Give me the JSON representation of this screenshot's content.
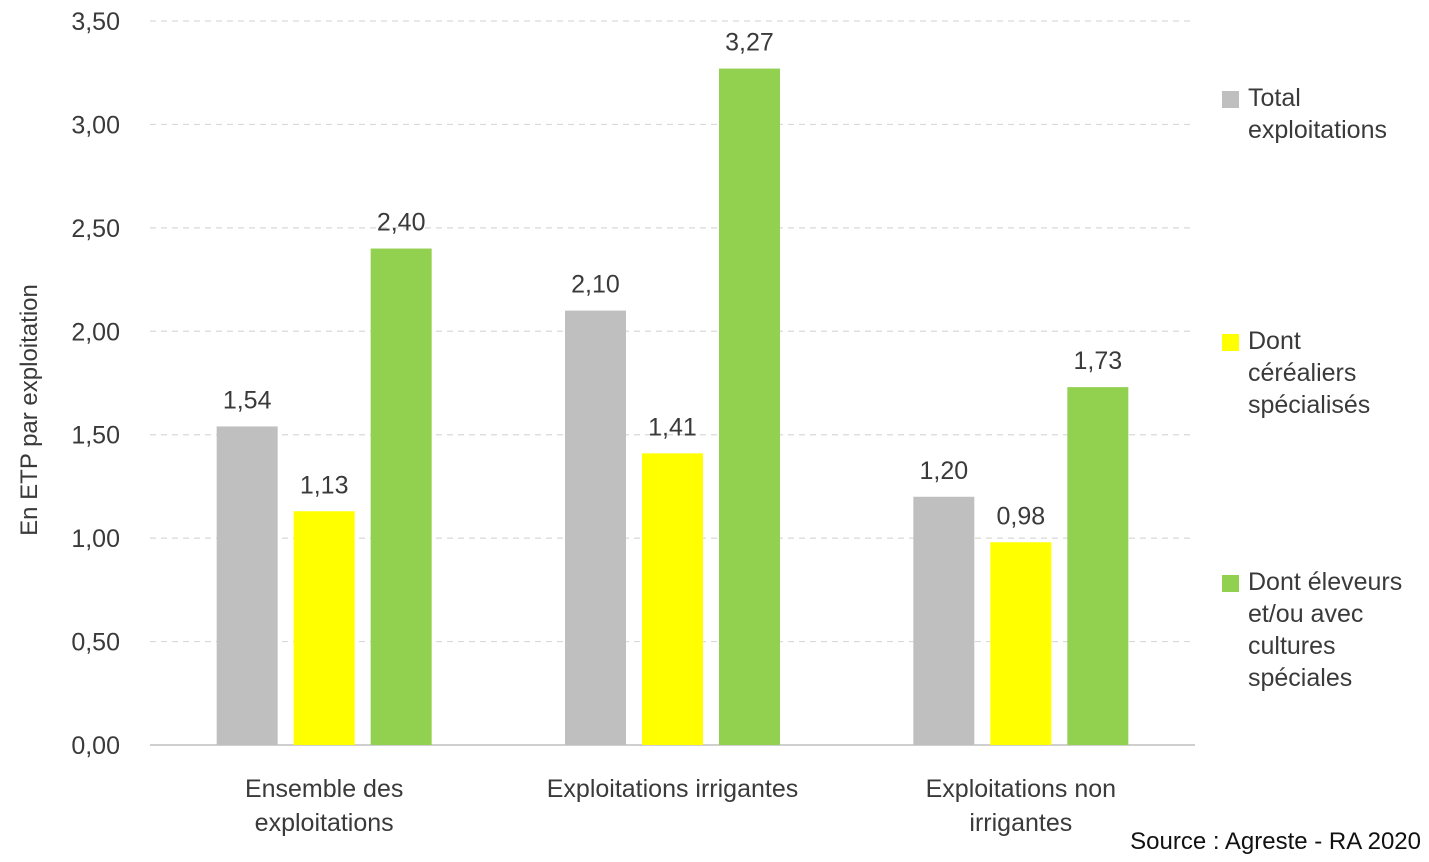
{
  "chart_data": {
    "type": "bar",
    "title": "",
    "xlabel": "",
    "ylabel": "En ETP par exploitation",
    "ylim": [
      0,
      3.5
    ],
    "yticks": [
      "0,00",
      "0,50",
      "1,00",
      "1,50",
      "2,00",
      "2,50",
      "3,00",
      "3,50"
    ],
    "grid": true,
    "legend_position": "right",
    "categories": [
      [
        "Ensemble des",
        "exploitations"
      ],
      [
        "Exploitations irrigantes"
      ],
      [
        "Exploitations non",
        "irrigantes"
      ]
    ],
    "series": [
      {
        "name": "Total exploitations",
        "color": "#bfbfbf",
        "values": [
          1.54,
          2.1,
          1.2
        ],
        "labels": [
          "1,54",
          "2,10",
          "1,20"
        ]
      },
      {
        "name": "Dont céréaliers spécialisés",
        "color": "#ffff00",
        "values": [
          1.13,
          1.41,
          0.98
        ],
        "labels": [
          "1,13",
          "1,41",
          "0,98"
        ]
      },
      {
        "name": "Dont éleveurs et/ou avec cultures spéciales",
        "color": "#92d050",
        "values": [
          2.4,
          3.27,
          1.73
        ],
        "labels": [
          "2,40",
          "3,27",
          "1,73"
        ]
      }
    ]
  },
  "legend": {
    "items": [
      {
        "lines": [
          "Total",
          "exploitations"
        ],
        "color": "#bfbfbf"
      },
      {
        "lines": [
          "Dont",
          "céréaliers",
          "spécialisés"
        ],
        "color": "#ffff00"
      },
      {
        "lines": [
          "Dont éleveurs",
          "et/ou avec",
          "cultures",
          "spéciales"
        ],
        "color": "#92d050"
      }
    ]
  },
  "source": "Source : Agreste  - RA 2020"
}
